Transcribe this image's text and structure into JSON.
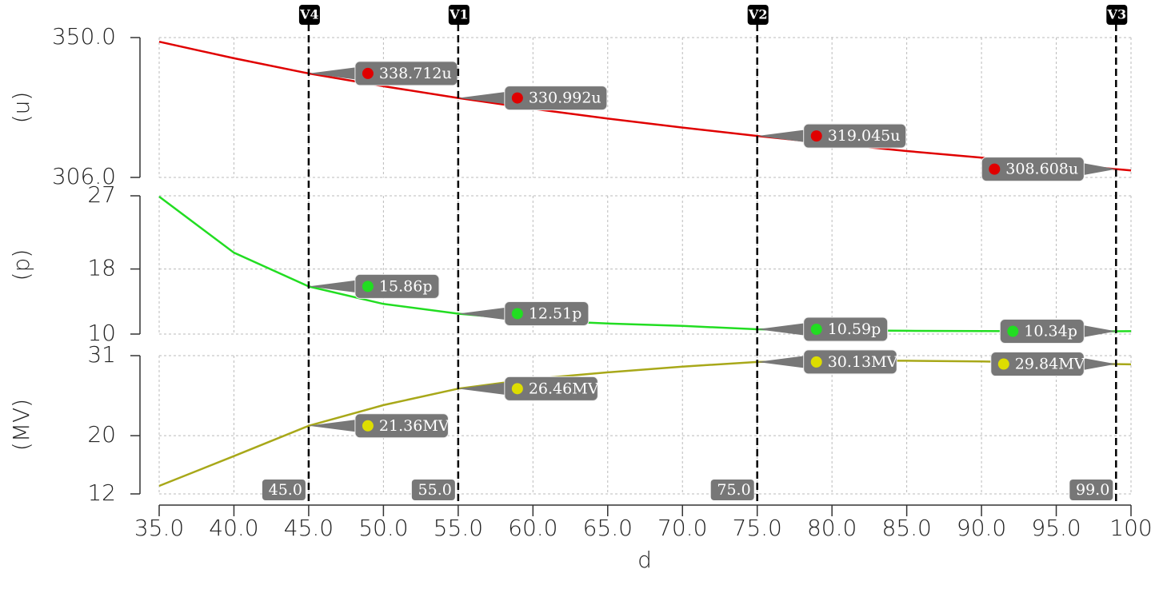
{
  "chart_data": {
    "type": "line",
    "xlabel": "d",
    "x": [
      35,
      40,
      45,
      50,
      55,
      60,
      65,
      70,
      75,
      80,
      85,
      90,
      95,
      99,
      100
    ],
    "xlim": [
      35,
      100
    ],
    "xticks": [
      {
        "value": 35,
        "label": "35.0"
      },
      {
        "value": 40,
        "label": "40.0"
      },
      {
        "value": 45,
        "label": "45.0"
      },
      {
        "value": 50,
        "label": "50.0"
      },
      {
        "value": 55,
        "label": "55.0"
      },
      {
        "value": 60,
        "label": "60.0"
      },
      {
        "value": 65,
        "label": "65.0"
      },
      {
        "value": 70,
        "label": "70.0"
      },
      {
        "value": 75,
        "label": "75.0"
      },
      {
        "value": 80,
        "label": "80.0"
      },
      {
        "value": 85,
        "label": "85.0"
      },
      {
        "value": 90,
        "label": "90.0"
      },
      {
        "value": 95,
        "label": "95.0"
      },
      100
    ],
    "grid": true,
    "panels": [
      {
        "ylabel": "(u)",
        "ylim": [
          306,
          350
        ],
        "yticks": [
          {
            "value": 350,
            "label": "350.0"
          },
          {
            "value": 306,
            "label": "306.0"
          }
        ],
        "series": [
          {
            "color": "#e00000",
            "marker_color": "#e00000",
            "values": [
              348.7,
              343.5,
              338.712,
              334.7,
              330.992,
              327.6,
              324.5,
              321.7,
              319.045,
              316.6,
              314.3,
              312.2,
              310.2,
              308.608,
              308.2
            ]
          }
        ]
      },
      {
        "ylabel": "(p)",
        "ylim": [
          10,
          27
        ],
        "yticks": [
          27,
          18,
          10
        ],
        "series": [
          {
            "color": "#22dd22",
            "marker_color": "#22dd22",
            "values": [
              26.9,
              20.0,
              15.86,
              13.7,
              12.51,
              11.7,
              11.3,
              11.0,
              10.59,
              10.45,
              10.4,
              10.36,
              10.34,
              10.34,
              10.35
            ]
          }
        ]
      },
      {
        "ylabel": "(MV)",
        "ylim": [
          12,
          31
        ],
        "yticks": [
          31,
          20,
          12
        ],
        "series": [
          {
            "color": "#a8a819",
            "marker_color": "#dddd00",
            "values": [
              13.1,
              17.2,
              21.36,
              24.2,
              26.46,
              27.8,
              28.7,
              29.5,
              30.13,
              30.3,
              30.3,
              30.2,
              30.0,
              29.84,
              29.8
            ]
          }
        ]
      }
    ],
    "cursors": [
      {
        "name": "V4",
        "x": {
          "value": 45,
          "label": "45.0"
        },
        "readouts": [
          {
            "value": 338.712,
            "label": "338.712u"
          },
          {
            "value": 15.86,
            "label": "15.86p"
          },
          {
            "value": 21.36,
            "label": "21.36MV"
          }
        ]
      },
      {
        "name": "V1",
        "x": {
          "value": 55,
          "label": "55.0"
        },
        "readouts": [
          {
            "value": 330.992,
            "label": "330.992u"
          },
          {
            "value": 12.51,
            "label": "12.51p"
          },
          {
            "value": 26.46,
            "label": "26.46MV"
          }
        ]
      },
      {
        "name": "V2",
        "x": {
          "value": 75,
          "label": "75.0"
        },
        "readouts": [
          {
            "value": 319.045,
            "label": "319.045u"
          },
          {
            "value": 10.59,
            "label": "10.59p"
          },
          {
            "value": 30.13,
            "label": "30.13MV"
          }
        ]
      },
      {
        "name": "V3",
        "x": {
          "value": 99,
          "label": "99.0"
        },
        "readouts": [
          {
            "value": 308.608,
            "label": "308.608u"
          },
          {
            "value": 10.34,
            "label": "10.34p"
          },
          {
            "value": 29.84,
            "label": "29.84MV"
          }
        ]
      }
    ]
  }
}
